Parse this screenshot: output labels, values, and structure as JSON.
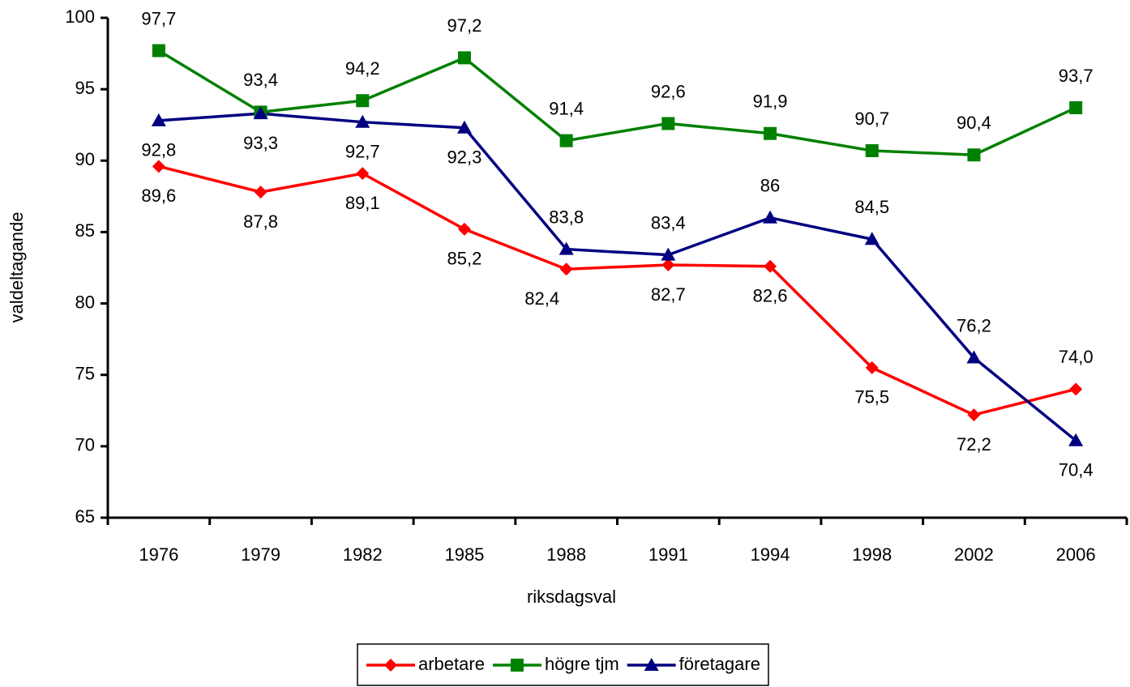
{
  "chart_data": {
    "type": "line",
    "x_label": "riksdagsval",
    "y_label": "valdeltagande",
    "categories": [
      "1976",
      "1979",
      "1982",
      "1985",
      "1988",
      "1991",
      "1994",
      "1998",
      "2002",
      "2006"
    ],
    "series": [
      {
        "name": "arbetare",
        "color": "#ff0000",
        "marker": "diamond",
        "values": [
          89.6,
          87.8,
          89.1,
          85.2,
          82.4,
          82.7,
          82.6,
          75.5,
          72.2,
          74.0
        ],
        "value_labels": [
          "89,6",
          "87,8",
          "89,1",
          "85,2",
          "82,4",
          "82,7",
          "82,6",
          "75,5",
          "72,2",
          "74,0"
        ]
      },
      {
        "name": "högre tjm",
        "color": "#008000",
        "marker": "square",
        "values": [
          97.7,
          93.4,
          94.2,
          97.2,
          91.4,
          92.6,
          91.9,
          90.7,
          90.4,
          93.7
        ],
        "value_labels": [
          "97,7",
          "93,4",
          "94,2",
          "97,2",
          "91,4",
          "92,6",
          "91,9",
          "90,7",
          "90,4",
          "93,7"
        ]
      },
      {
        "name": "företagare",
        "color": "#000080",
        "marker": "triangle",
        "values": [
          92.8,
          93.3,
          92.7,
          92.3,
          83.8,
          83.4,
          86,
          84.5,
          76.2,
          70.4
        ],
        "value_labels": [
          "92,8",
          "93,3",
          "92,7",
          "92,3",
          "83,8",
          "83,4",
          "86",
          "84,5",
          "76,2",
          "70,4"
        ]
      }
    ],
    "ylim": [
      65,
      100
    ],
    "yticks": [
      65,
      70,
      75,
      80,
      85,
      90,
      95,
      100
    ],
    "legend": "bottom",
    "grid": false
  }
}
